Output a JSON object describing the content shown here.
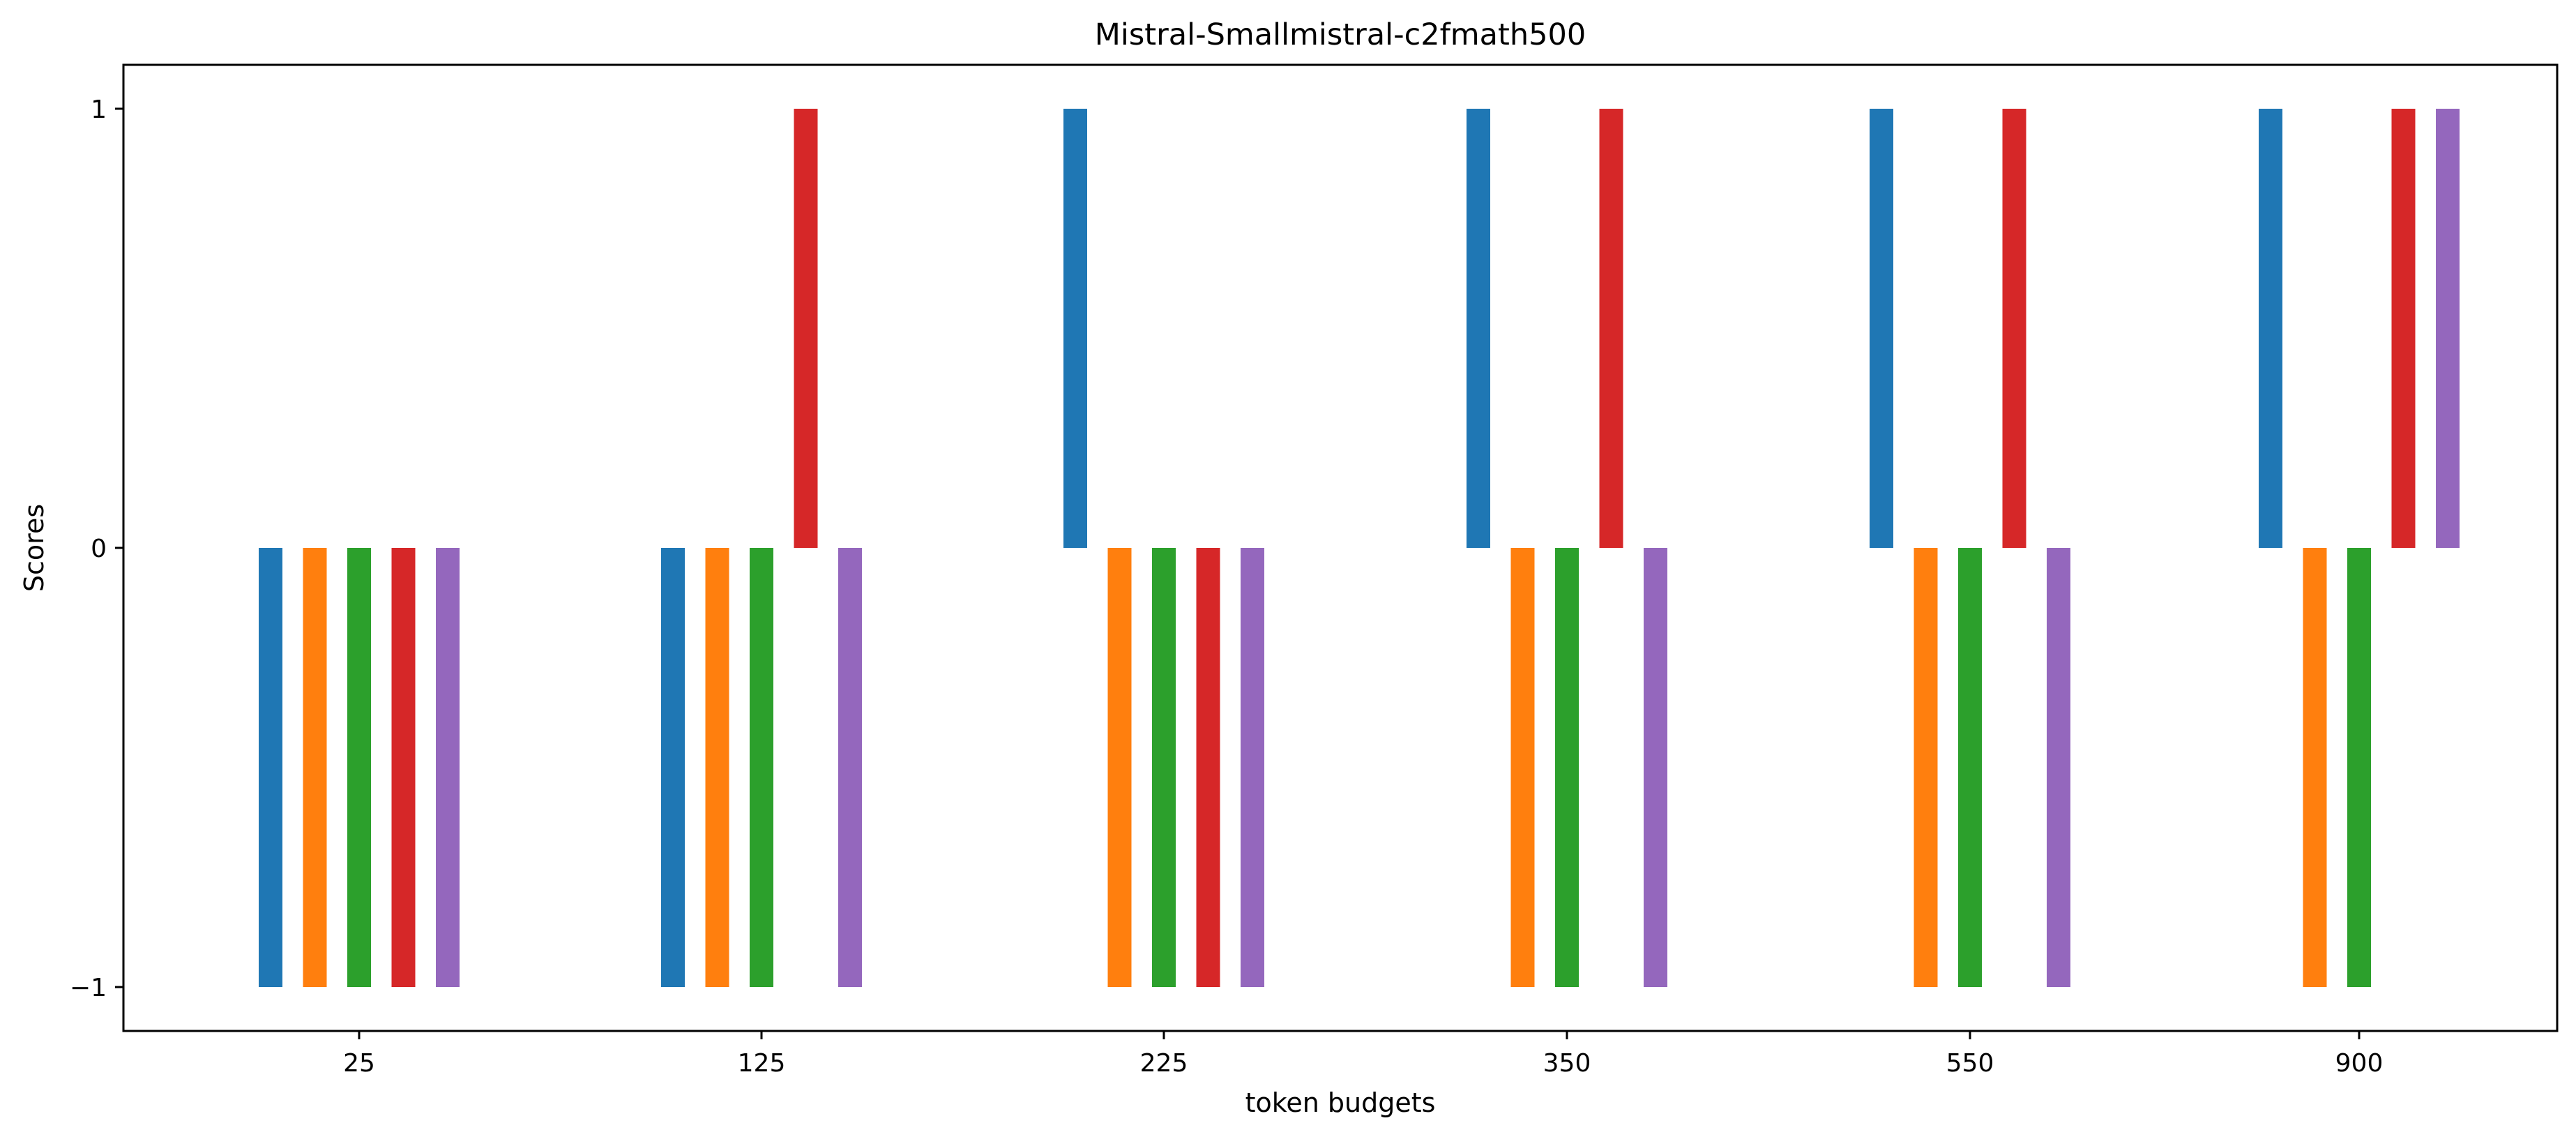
{
  "chart_data": {
    "type": "bar",
    "title": "Mistral-Smallmistral-c2fmath500",
    "xlabel": "token budgets",
    "ylabel": "Scores",
    "categories": [
      "25",
      "125",
      "225",
      "350",
      "550",
      "900"
    ],
    "yticks": [
      1,
      0,
      -1
    ],
    "ytick_labels": [
      "1",
      "0",
      "−1"
    ],
    "ylim": [
      -1.1,
      1.1
    ],
    "grid": false,
    "legend": "none",
    "series": [
      {
        "color": "#1f77b4",
        "values": [
          -1,
          -1,
          1,
          1,
          1,
          1
        ]
      },
      {
        "color": "#ff7f0e",
        "values": [
          -1,
          -1,
          -1,
          -1,
          -1,
          -1
        ]
      },
      {
        "color": "#2ca02c",
        "values": [
          -1,
          -1,
          -1,
          -1,
          -1,
          -1
        ]
      },
      {
        "color": "#d62728",
        "values": [
          -1,
          1,
          -1,
          1,
          1,
          1
        ]
      },
      {
        "color": "#9467bd",
        "values": [
          -1,
          -1,
          -1,
          -1,
          -1,
          1
        ]
      }
    ]
  }
}
